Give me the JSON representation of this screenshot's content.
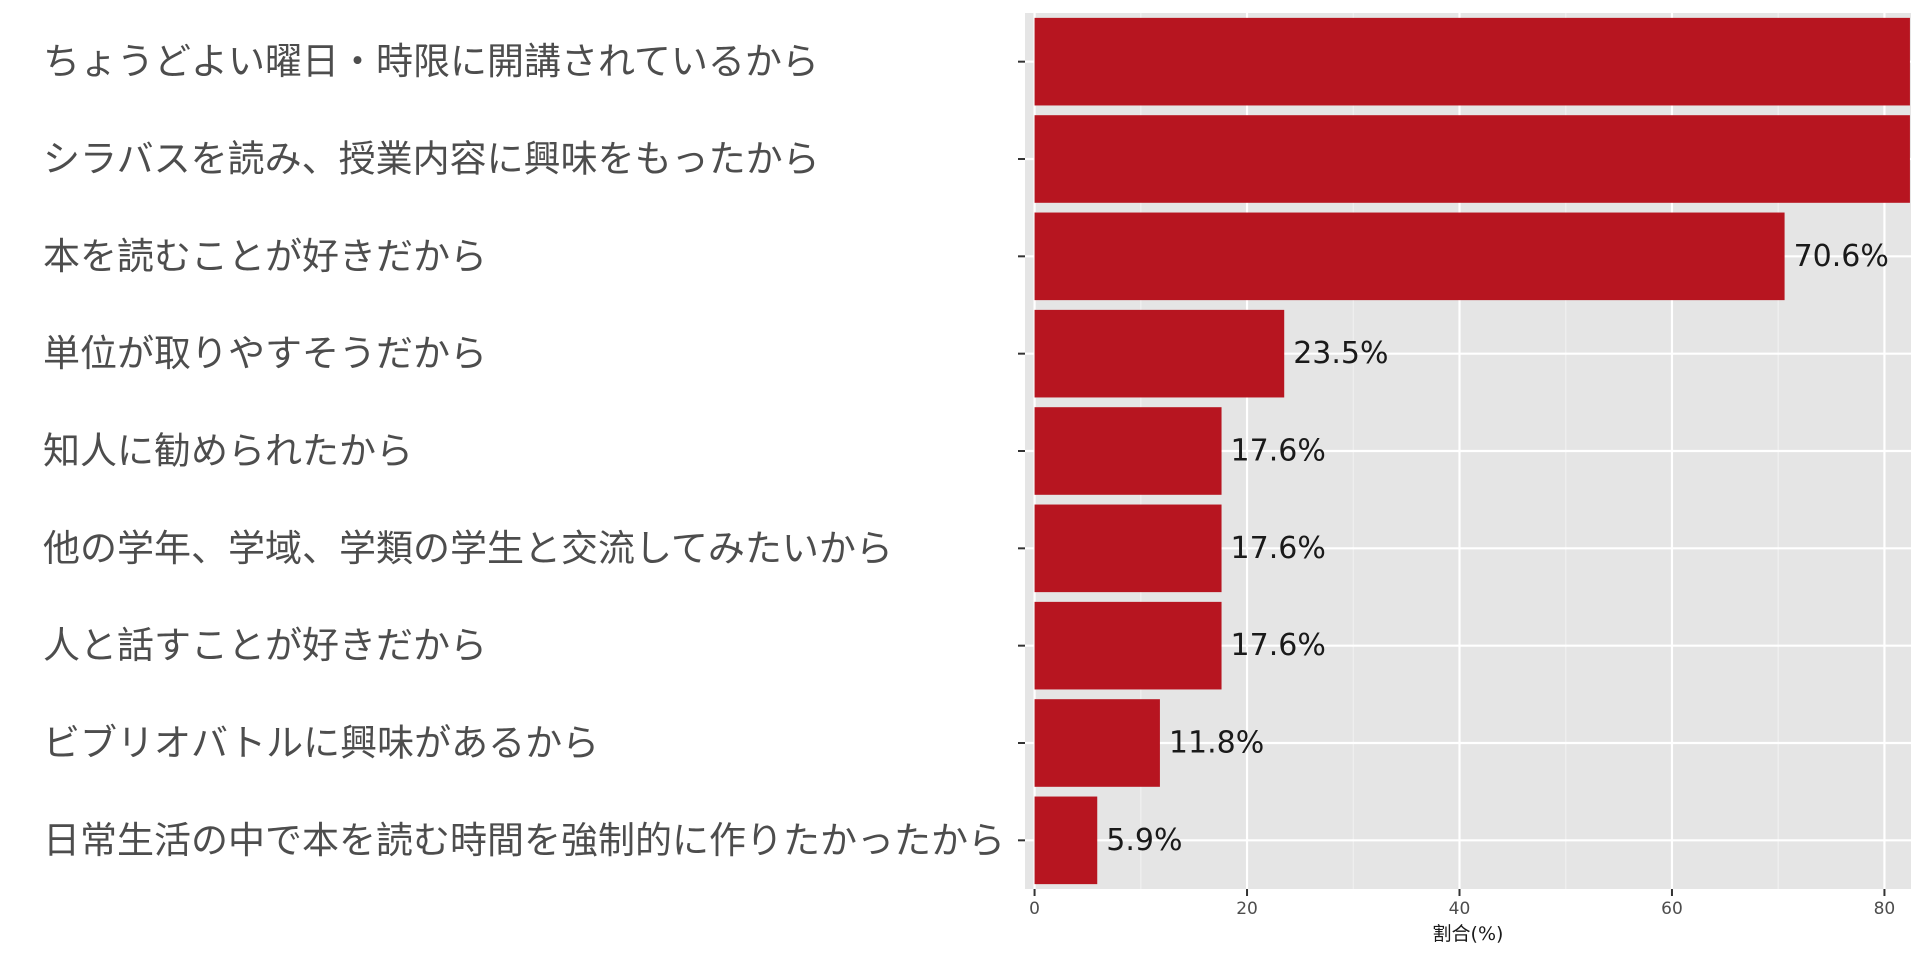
{
  "chart_data": {
    "type": "bar",
    "orientation": "horizontal",
    "categories": [
      "ちょうどよい曜日・時限に開講されているから",
      "シラバスを読み、授業内容に興味をもったから",
      "本を読むことが好きだから",
      "単位が取りやすそうだから",
      "知人に勧められたから",
      "他の学年、学域、学類の学生と交流してみたいから",
      "人と話すことが好きだから",
      "ビブリオバトルに興味があるから",
      "日常生活の中で本を読む時間を強制的に作りたかったから"
    ],
    "values": [
      82.4,
      82.4,
      70.6,
      23.5,
      17.6,
      17.6,
      17.6,
      11.8,
      5.9
    ],
    "data_labels": [
      "",
      "",
      "70.6%",
      "23.5%",
      "17.6%",
      "17.6%",
      "17.6%",
      "11.8%",
      "5.9%"
    ],
    "x_ticks": [
      0,
      20,
      40,
      60,
      80
    ],
    "xlim": [
      -0.9,
      82.5
    ],
    "xlabel": "割合(%)",
    "ylabel": "",
    "title": "",
    "grid": true,
    "colors": {
      "bar": "#b71520",
      "panel": "#e5e5e5",
      "grid_major": "#ffffff",
      "grid_minor": "#f0f0f0"
    }
  }
}
